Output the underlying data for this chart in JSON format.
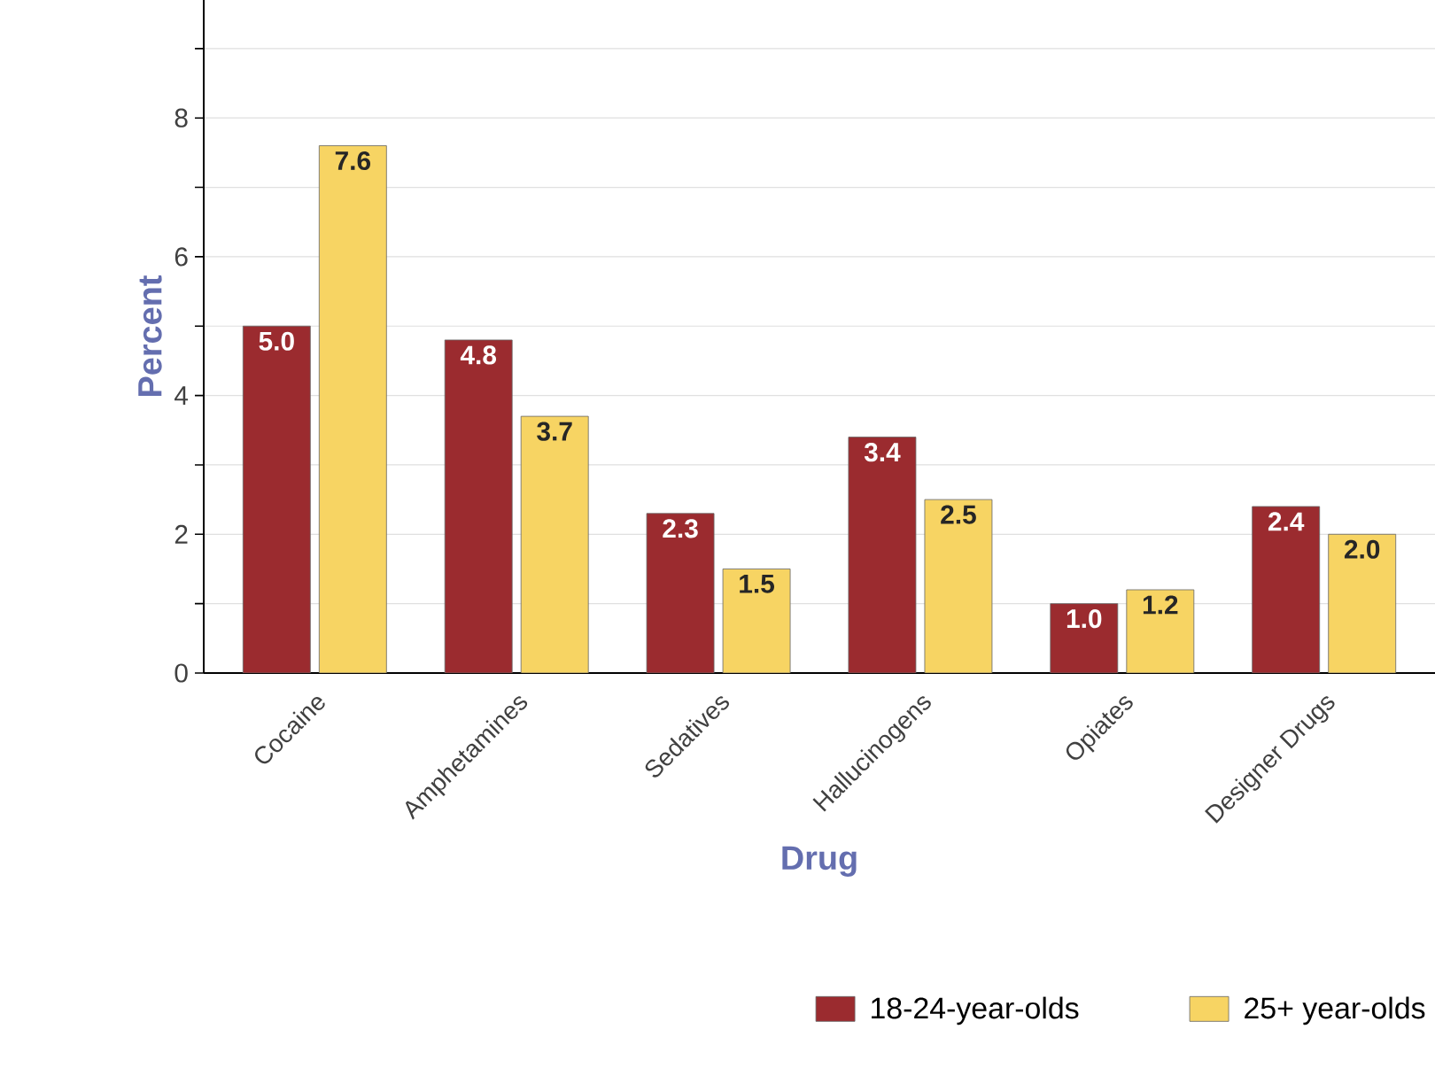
{
  "chart_data": {
    "type": "bar",
    "xlabel": "Drug",
    "ylabel": "Percent",
    "categories": [
      "Cocaine",
      "Amphetamines",
      "Sedatives",
      "Hallucinogens",
      "Opiates",
      "Designer Drugs"
    ],
    "series": [
      {
        "name": "18-24-year-olds",
        "color": "#9b2b2f",
        "values": [
          5.0,
          4.8,
          2.3,
          3.4,
          1.0,
          2.4
        ],
        "value_labels": [
          "5.0",
          "4.8",
          "2.3",
          "3.4",
          "1.0",
          "2.4"
        ]
      },
      {
        "name": "25+ year-olds",
        "color": "#f7d463",
        "values": [
          7.6,
          3.7,
          1.5,
          2.5,
          1.2,
          2.0
        ],
        "value_labels": [
          "7.6",
          "3.7",
          "1.5",
          "2.5",
          "1.2",
          "2.0"
        ]
      }
    ],
    "ylim": [
      0,
      9.7
    ],
    "yticks": [
      0,
      {
        "value": 1,
        "label": null
      },
      2,
      {
        "value": 3,
        "label": null
      },
      4,
      {
        "value": 5,
        "label": null
      },
      6,
      {
        "value": 7,
        "label": null
      },
      8,
      {
        "value": 9,
        "label": null
      }
    ],
    "grid": "y",
    "legend": "bottom right"
  }
}
